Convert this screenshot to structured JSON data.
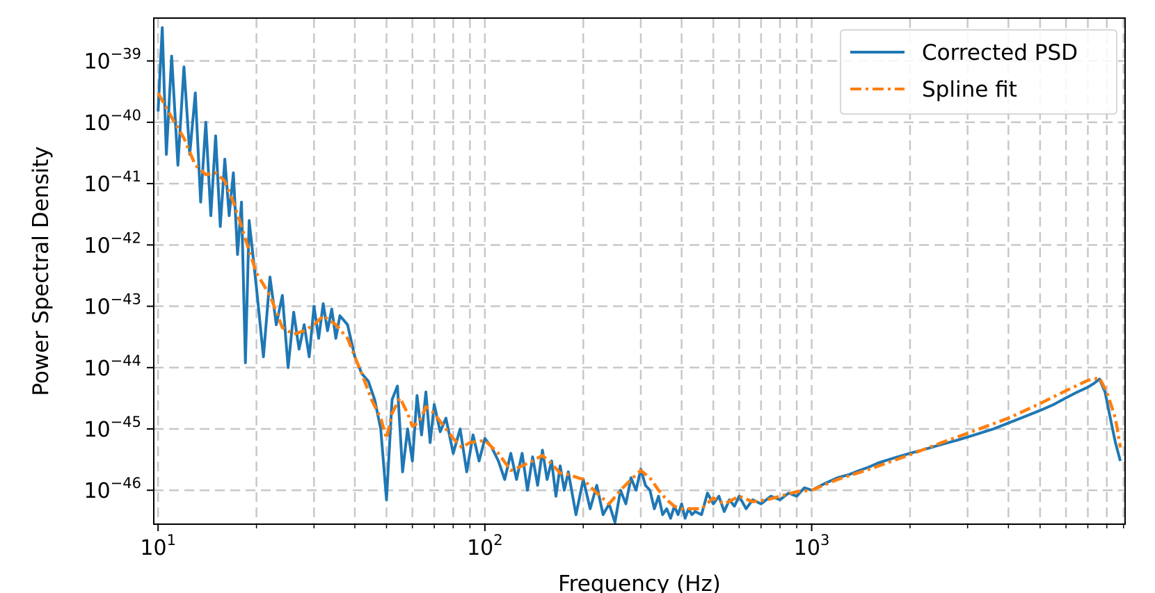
{
  "chart_data": {
    "type": "line",
    "xlabel": "Frequency (Hz)",
    "ylabel": "Power Spectral Density",
    "xscale": "log",
    "yscale": "log",
    "xlim": [
      9.7,
      9100
    ],
    "ylim": [
      2.8e-47,
      5e-39
    ],
    "grid": true,
    "legend_position": "top-right",
    "x_ticks": [
      {
        "value": 10,
        "base": "10",
        "exp": "1"
      },
      {
        "value": 100,
        "base": "10",
        "exp": "2"
      },
      {
        "value": 1000,
        "base": "10",
        "exp": "3"
      }
    ],
    "y_ticks": [
      {
        "value": 1e-39,
        "base": "10",
        "exp": "−39"
      },
      {
        "value": 1e-40,
        "base": "10",
        "exp": "−40"
      },
      {
        "value": 1e-41,
        "base": "10",
        "exp": "−41"
      },
      {
        "value": 1e-42,
        "base": "10",
        "exp": "−42"
      },
      {
        "value": 1e-43,
        "base": "10",
        "exp": "−43"
      },
      {
        "value": 1e-44,
        "base": "10",
        "exp": "−44"
      },
      {
        "value": 1e-45,
        "base": "10",
        "exp": "−45"
      },
      {
        "value": 1e-46,
        "base": "10",
        "exp": "−46"
      }
    ],
    "series": [
      {
        "name": "Corrected PSD",
        "color": "#1f77b4",
        "style": "solid",
        "x": [
          10,
          10.3,
          10.6,
          11,
          11.5,
          12,
          12.5,
          13,
          13.5,
          14,
          14.5,
          15,
          15.5,
          16,
          16.5,
          17,
          17.5,
          18,
          18.5,
          19,
          20,
          21,
          22,
          23,
          24,
          25,
          26,
          27,
          28,
          29,
          30,
          31,
          32,
          33,
          34,
          35,
          36,
          38,
          40,
          42,
          44,
          46,
          48,
          50,
          52,
          54,
          56,
          58,
          60,
          62,
          64,
          66,
          68,
          70,
          73,
          76,
          80,
          84,
          88,
          92,
          96,
          100,
          105,
          110,
          115,
          120,
          125,
          130,
          135,
          140,
          145,
          150,
          155,
          160,
          165,
          170,
          175,
          180,
          190,
          200,
          210,
          220,
          230,
          240,
          250,
          260,
          270,
          280,
          290,
          300,
          310,
          320,
          330,
          340,
          350,
          360,
          370,
          380,
          390,
          400,
          410,
          420,
          430,
          440,
          460,
          480,
          500,
          520,
          540,
          560,
          580,
          600,
          630,
          660,
          700,
          750,
          800,
          850,
          900,
          950,
          1000,
          1100,
          1200,
          1300,
          1400,
          1500,
          1600,
          1800,
          2000,
          2200,
          2500,
          2800,
          3200,
          3600,
          4000,
          4500,
          5000,
          5500,
          6000,
          6500,
          7000,
          7300,
          7600,
          7900,
          8200,
          8500,
          8800
        ],
        "y": [
          1.5e-40,
          3.5e-39,
          3e-41,
          1.2e-39,
          2e-41,
          8e-40,
          3e-41,
          3e-40,
          5e-42,
          1e-40,
          3e-42,
          6e-41,
          2e-42,
          2.5e-41,
          3e-42,
          1.5e-41,
          7e-43,
          5e-42,
          1.2e-44,
          2.5e-42,
          2e-43,
          1.5e-44,
          3e-43,
          5e-44,
          1.5e-43,
          1e-44,
          8e-44,
          2e-44,
          5e-44,
          1.5e-44,
          1e-43,
          3e-44,
          1.1e-43,
          4e-44,
          9e-44,
          3e-44,
          7e-44,
          5e-44,
          1.5e-44,
          8e-45,
          6e-45,
          3e-45,
          1e-45,
          7e-47,
          3e-45,
          5e-45,
          2e-46,
          1e-45,
          3e-46,
          3.5e-45,
          8e-46,
          4e-45,
          6e-46,
          2.5e-45,
          9e-46,
          1.5e-45,
          4e-46,
          1e-45,
          2e-46,
          8e-46,
          3e-46,
          7e-46,
          5e-46,
          3e-46,
          1.5e-46,
          4e-46,
          1.5e-46,
          4e-46,
          1e-46,
          3.5e-46,
          1.2e-46,
          4.5e-46,
          1.5e-46,
          3e-46,
          8e-47,
          2.5e-46,
          1e-46,
          2e-46,
          4e-47,
          1.5e-46,
          5e-47,
          1.2e-46,
          4e-47,
          6e-47,
          3e-47,
          1e-46,
          6e-47,
          1.6e-46,
          1e-46,
          2.2e-46,
          1.2e-46,
          1e-46,
          5e-47,
          8e-47,
          4e-47,
          5e-47,
          3.5e-47,
          5.5e-47,
          4e-47,
          6e-47,
          3.5e-47,
          5e-47,
          4e-47,
          4.5e-47,
          4e-47,
          9e-47,
          6e-47,
          8e-47,
          4.5e-47,
          7e-47,
          5.5e-47,
          8e-47,
          5e-47,
          7e-47,
          6e-47,
          8e-47,
          7e-47,
          9e-47,
          8e-47,
          1.1e-46,
          1e-46,
          1.3e-46,
          1.6e-46,
          1.8e-46,
          2.1e-46,
          2.4e-46,
          2.8e-46,
          3.4e-46,
          4e-46,
          4.6e-46,
          5.6e-46,
          6.6e-46,
          8.2e-46,
          1e-45,
          1.25e-45,
          1.6e-45,
          2e-45,
          2.5e-45,
          3.2e-45,
          4e-45,
          4.8e-45,
          5.5e-45,
          6.5e-45,
          4e-45,
          1.5e-45,
          6e-46,
          3e-46
        ]
      },
      {
        "name": "Spline fit",
        "color": "#ff7f0e",
        "style": "dashdot",
        "x": [
          10,
          11,
          12,
          13,
          14,
          15,
          16,
          17,
          18,
          19,
          20,
          22,
          24,
          26,
          28,
          30,
          32,
          35,
          38,
          40,
          42,
          45,
          48,
          50,
          52,
          55,
          58,
          60,
          63,
          66,
          70,
          75,
          80,
          85,
          90,
          100,
          110,
          120,
          130,
          140,
          150,
          160,
          170,
          180,
          200,
          220,
          240,
          260,
          280,
          300,
          320,
          340,
          360,
          380,
          400,
          430,
          460,
          500,
          540,
          600,
          660,
          730,
          800,
          900,
          1000,
          1200,
          1500,
          2000,
          2500,
          3000,
          4000,
          5000,
          6000,
          7000,
          7600,
          8000,
          8500,
          8800
        ],
        "y": [
          3e-40,
          1.2e-40,
          5.5e-41,
          2e-41,
          1.4e-41,
          1.5e-41,
          1.1e-41,
          5e-42,
          2e-42,
          8e-43,
          3.5e-43,
          1.5e-43,
          4.5e-44,
          3.5e-44,
          4e-44,
          5e-44,
          7e-44,
          5e-44,
          3e-44,
          1.5e-44,
          8e-45,
          3e-45,
          1.5e-45,
          7e-46,
          1.8e-45,
          3.2e-45,
          1.8e-45,
          1.1e-45,
          1.3e-45,
          2.3e-45,
          1.8e-45,
          1.1e-45,
          7e-46,
          5e-46,
          6e-46,
          6.5e-46,
          4e-46,
          2.1e-46,
          2.5e-46,
          3e-46,
          3.7e-46,
          2.7e-46,
          1.9e-46,
          1.8e-46,
          1.5e-46,
          9e-47,
          6e-47,
          1e-46,
          1.5e-46,
          2.1e-46,
          1.6e-46,
          1e-46,
          7e-47,
          5.5e-47,
          5e-47,
          5e-47,
          5e-47,
          7.5e-47,
          6e-47,
          8e-47,
          6.5e-47,
          7e-47,
          8e-47,
          9.5e-47,
          1e-46,
          1.5e-46,
          2.2e-46,
          3.8e-46,
          6e-46,
          8.5e-46,
          1.5e-45,
          2.6e-45,
          4.2e-45,
          6.2e-45,
          6.8e-45,
          4e-45,
          1.5e-45,
          5e-46
        ]
      }
    ]
  }
}
